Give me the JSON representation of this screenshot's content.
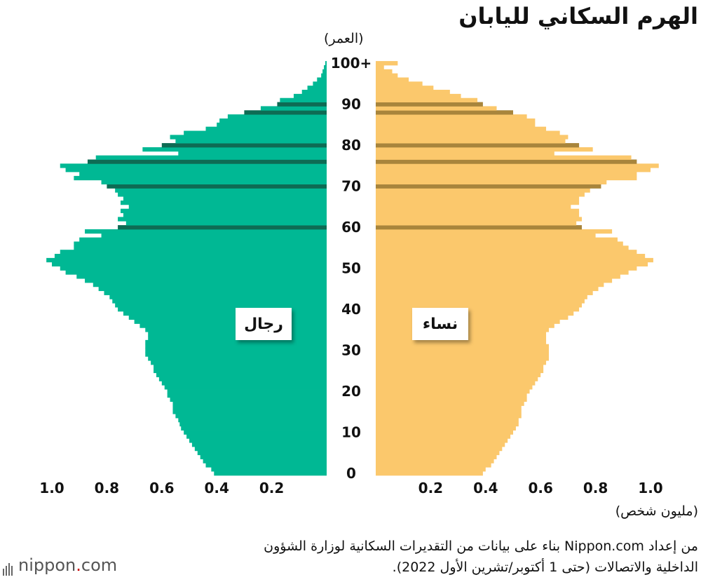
{
  "chart_data": {
    "type": "bar",
    "orientation": "horizontal-pyramid",
    "title": "الهرم السكاني لليابان",
    "age_axis_label": "(العمر)",
    "value_axis_label": "(مليون شخص)",
    "age_ticks": [
      "0",
      "10",
      "20",
      "30",
      "40",
      "50",
      "60",
      "70",
      "80",
      "90",
      "100+"
    ],
    "value_ticks_left": [
      "1.0",
      "0.8",
      "0.6",
      "0.4",
      "0.2"
    ],
    "value_ticks_right": [
      "0.2",
      "0.4",
      "0.6",
      "0.8",
      "1.0"
    ],
    "xlim": [
      0,
      1.1
    ],
    "ages": [
      0,
      1,
      2,
      3,
      4,
      5,
      6,
      7,
      8,
      9,
      10,
      11,
      12,
      13,
      14,
      15,
      16,
      17,
      18,
      19,
      20,
      21,
      22,
      23,
      24,
      25,
      26,
      27,
      28,
      29,
      30,
      31,
      32,
      33,
      34,
      35,
      36,
      37,
      38,
      39,
      40,
      41,
      42,
      43,
      44,
      45,
      46,
      47,
      48,
      49,
      50,
      51,
      52,
      53,
      54,
      55,
      56,
      57,
      58,
      59,
      60,
      61,
      62,
      63,
      64,
      65,
      66,
      67,
      68,
      69,
      70,
      71,
      72,
      73,
      74,
      75,
      76,
      77,
      78,
      79,
      80,
      81,
      82,
      83,
      84,
      85,
      86,
      87,
      88,
      89,
      90,
      91,
      92,
      93,
      94,
      95,
      96,
      97,
      98,
      99,
      100
    ],
    "series": [
      {
        "name": "رجال",
        "color": "#00b894",
        "values": [
          0.41,
          0.42,
          0.44,
          0.45,
          0.46,
          0.47,
          0.48,
          0.49,
          0.5,
          0.51,
          0.52,
          0.53,
          0.535,
          0.54,
          0.55,
          0.56,
          0.56,
          0.56,
          0.57,
          0.58,
          0.58,
          0.59,
          0.6,
          0.61,
          0.62,
          0.63,
          0.63,
          0.64,
          0.65,
          0.66,
          0.66,
          0.66,
          0.66,
          0.65,
          0.65,
          0.66,
          0.68,
          0.7,
          0.72,
          0.74,
          0.76,
          0.77,
          0.78,
          0.79,
          0.81,
          0.83,
          0.85,
          0.88,
          0.91,
          0.95,
          0.97,
          1.0,
          1.02,
          0.99,
          0.97,
          0.92,
          0.92,
          0.9,
          0.82,
          0.88,
          0.76,
          0.73,
          0.76,
          0.74,
          0.75,
          0.72,
          0.75,
          0.74,
          0.76,
          0.77,
          0.8,
          0.82,
          0.92,
          0.9,
          0.95,
          0.97,
          0.87,
          0.84,
          0.54,
          0.67,
          0.6,
          0.55,
          0.57,
          0.52,
          0.44,
          0.4,
          0.39,
          0.36,
          0.3,
          0.24,
          0.18,
          0.17,
          0.12,
          0.09,
          0.07,
          0.05,
          0.035,
          0.02,
          0.015,
          0.01,
          0.005
        ]
      },
      {
        "name": "نساء",
        "color": "#fbc86c",
        "values": [
          0.39,
          0.4,
          0.42,
          0.43,
          0.44,
          0.45,
          0.46,
          0.47,
          0.48,
          0.49,
          0.5,
          0.51,
          0.52,
          0.52,
          0.53,
          0.53,
          0.53,
          0.54,
          0.55,
          0.55,
          0.56,
          0.57,
          0.58,
          0.59,
          0.6,
          0.61,
          0.61,
          0.62,
          0.63,
          0.63,
          0.63,
          0.63,
          0.62,
          0.62,
          0.62,
          0.63,
          0.65,
          0.67,
          0.7,
          0.72,
          0.74,
          0.75,
          0.76,
          0.77,
          0.79,
          0.81,
          0.83,
          0.86,
          0.89,
          0.92,
          0.95,
          0.99,
          1.01,
          0.98,
          0.95,
          0.92,
          0.9,
          0.88,
          0.8,
          0.86,
          0.75,
          0.73,
          0.75,
          0.74,
          0.74,
          0.71,
          0.74,
          0.74,
          0.76,
          0.78,
          0.82,
          0.84,
          0.95,
          0.95,
          1.0,
          1.03,
          0.95,
          0.93,
          0.65,
          0.79,
          0.74,
          0.69,
          0.7,
          0.67,
          0.62,
          0.58,
          0.58,
          0.55,
          0.5,
          0.44,
          0.39,
          0.37,
          0.31,
          0.27,
          0.21,
          0.17,
          0.12,
          0.08,
          0.06,
          0.03,
          0.08
        ]
      }
    ],
    "highlighted_ages": [
      60,
      70,
      76,
      80,
      88,
      90
    ],
    "highlight_colors": {
      "male": "#0e6b54",
      "female": "#a8853c"
    },
    "legend": {
      "male": "رجال",
      "female": "نساء",
      "placement": "inside-bars-middle"
    }
  },
  "source": {
    "line1": "من إعداد Nippon.com بناء على بيانات من التقديرات السكانية لوزارة الشؤون",
    "line2": "الداخلية والاتصالات (حتى 1 أكتوبر/تشرين الأول 2022)."
  },
  "logo": {
    "text_main": "nippon",
    "text_dot": ".",
    "text_tld": "com"
  }
}
